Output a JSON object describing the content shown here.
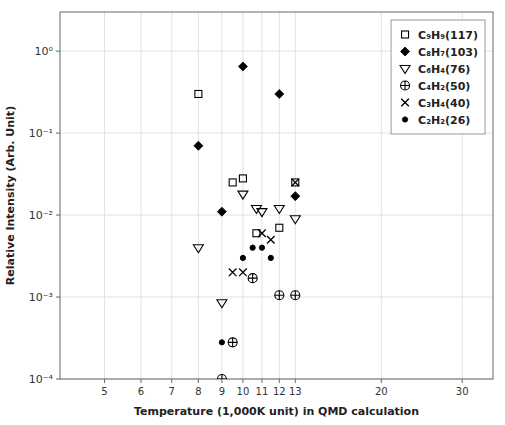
{
  "chart_data": {
    "type": "scatter",
    "xlabel": "Temperature (1,000K unit) in QMD calculation",
    "ylabel": "Relative Intensity (Arb. Unit)",
    "log": true,
    "grid": true,
    "legend": "upper right",
    "xlim": [
      4,
      35
    ],
    "ylim": [
      0.0001,
      3
    ],
    "xticks": [
      5,
      6,
      7,
      8,
      9,
      10,
      11,
      12,
      13,
      20,
      30
    ],
    "yticks": [
      {
        "value": 0.0001,
        "label": "10⁻⁴"
      },
      {
        "value": 0.001,
        "label": "10⁻³"
      },
      {
        "value": 0.01,
        "label": "10⁻²"
      },
      {
        "value": 0.1,
        "label": "10⁻¹"
      },
      {
        "value": 1,
        "label": "10⁰"
      }
    ],
    "series": [
      {
        "name": "C₉H₉(117)",
        "color": "#000000",
        "marker": "square-open",
        "x": [
          8.0,
          9.5,
          10.0,
          10.7,
          12.0,
          13.0
        ],
        "values": [
          0.3,
          0.025,
          0.028,
          0.006,
          0.007,
          0.025
        ]
      },
      {
        "name": "C₈H₇(103)",
        "color": "#000000",
        "marker": "diamond",
        "x": [
          8.0,
          9.0,
          10.0,
          12.0,
          13.0
        ],
        "values": [
          0.07,
          0.011,
          0.65,
          0.3,
          0.017
        ]
      },
      {
        "name": "C₆H₄(76)",
        "color": "#000000",
        "marker": "triangle-down-open",
        "x": [
          8.0,
          9.0,
          10.0,
          10.7,
          11.0,
          12.0,
          13.0
        ],
        "values": [
          0.004,
          0.00085,
          0.018,
          0.012,
          0.011,
          0.012,
          0.009
        ]
      },
      {
        "name": "C₄H₂(50)",
        "color": "#000000",
        "marker": "circle-plus",
        "x": [
          9.0,
          9.5,
          10.5,
          12.0,
          13.0
        ],
        "values": [
          0.0001,
          0.00028,
          0.0017,
          0.00105,
          0.00105
        ]
      },
      {
        "name": "C₃H₄(40)",
        "color": "#000000",
        "marker": "x",
        "x": [
          9.5,
          10.0,
          11.0,
          11.5,
          13.0
        ],
        "values": [
          0.002,
          0.002,
          0.006,
          0.005,
          0.025
        ]
      },
      {
        "name": "C₂H₂(26)",
        "color": "#000000",
        "marker": "circle",
        "x": [
          9.0,
          10.0,
          10.5,
          11.0,
          11.5
        ],
        "values": [
          0.00028,
          0.003,
          0.004,
          0.004,
          0.003
        ]
      }
    ]
  }
}
